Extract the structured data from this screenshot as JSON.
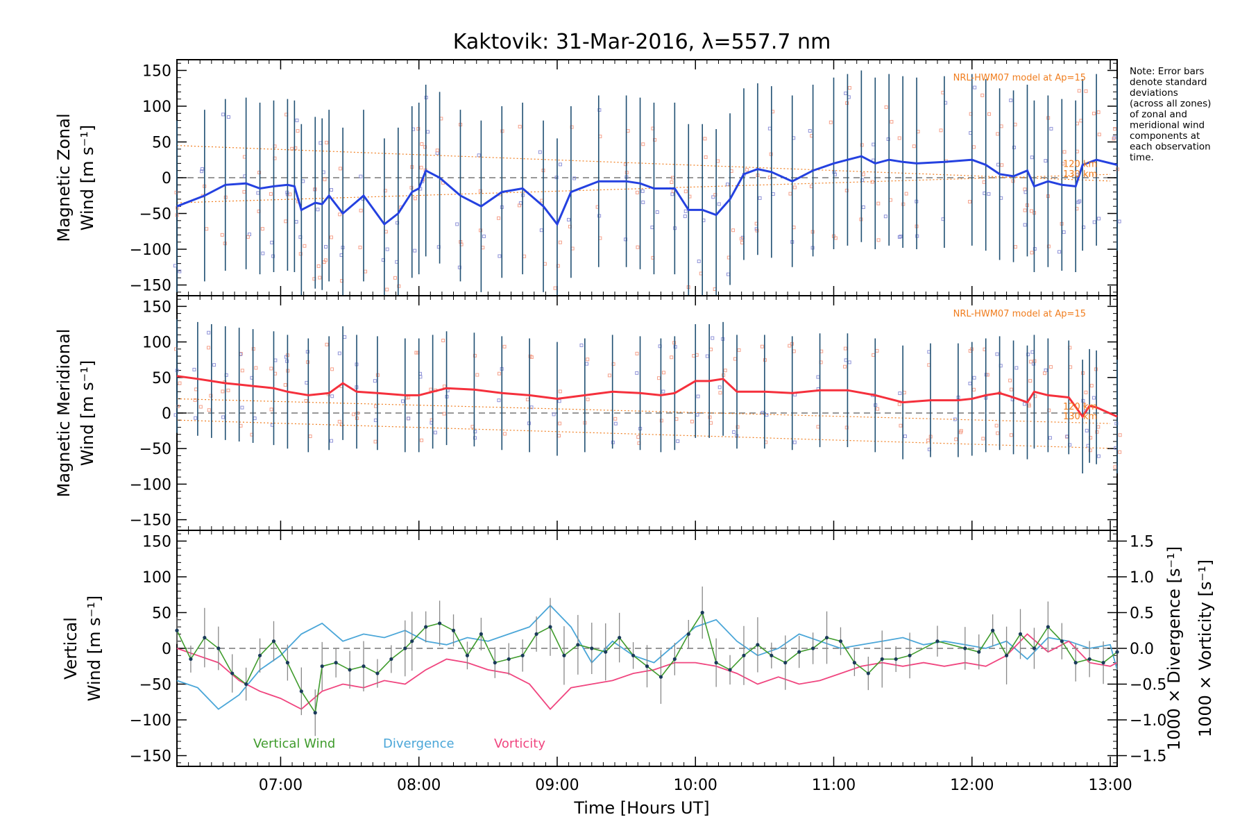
{
  "chart_data": {
    "type": "line",
    "title": "Kaktovik: 31-Mar-2016, λ=557.7 nm",
    "xlabel": "Time [Hours UT]",
    "xlim": [
      6.25,
      13.05
    ],
    "xticks": [
      {
        "v": 7,
        "label": "07:00"
      },
      {
        "v": 8,
        "label": "08:00"
      },
      {
        "v": 9,
        "label": "09:00"
      },
      {
        "v": 10,
        "label": "10:00"
      },
      {
        "v": 11,
        "label": "11:00"
      },
      {
        "v": 12,
        "label": "12:00"
      },
      {
        "v": 13,
        "label": "13:00"
      }
    ],
    "note": [
      "Note: Error bars",
      "denote standard",
      "deviations",
      "(across all zones)",
      "of zonal and",
      "meridional wind",
      "components at",
      "each observation",
      "time."
    ],
    "colors": {
      "zonal": "#2441e0",
      "meridional": "#f5303c",
      "vertical": "#3f9b2c",
      "divergence": "#4aa6d8",
      "vorticity": "#f0457f",
      "model": "#f07d1e",
      "errbar": "#1f4f72",
      "scatter": "#f5a08a",
      "scatter2": "#8e92d8"
    },
    "panels": [
      {
        "id": "zonal",
        "ylabel_lines": [
          "Magnetic Zonal",
          "Wind [m s⁻¹]"
        ],
        "ylim": [
          -165,
          165
        ],
        "yticks": [
          -150,
          -100,
          -50,
          0,
          50,
          100,
          150
        ],
        "model_label": "NRL-HWM07 model at Ap=15",
        "model_alt_labels": [
          "120 km",
          "130 km"
        ],
        "series": {
          "name": "Zonal",
          "x": [
            6.25,
            6.45,
            6.6,
            6.75,
            6.85,
            6.95,
            7.05,
            7.1,
            7.15,
            7.25,
            7.3,
            7.35,
            7.45,
            7.6,
            7.75,
            7.85,
            7.95,
            8.0,
            8.05,
            8.15,
            8.3,
            8.45,
            8.6,
            8.75,
            8.9,
            9.0,
            9.1,
            9.3,
            9.5,
            9.6,
            9.7,
            9.85,
            9.95,
            10.05,
            10.15,
            10.25,
            10.35,
            10.45,
            10.55,
            10.7,
            10.85,
            11.0,
            11.1,
            11.2,
            11.3,
            11.4,
            11.5,
            11.6,
            11.8,
            12.0,
            12.1,
            12.2,
            12.3,
            12.4,
            12.45,
            12.55,
            12.65,
            12.75,
            12.8,
            12.9,
            13.05
          ],
          "y": [
            -40,
            -25,
            -10,
            -8,
            -15,
            -12,
            -10,
            -12,
            -45,
            -35,
            -37,
            -25,
            -50,
            -25,
            -65,
            -50,
            -20,
            -15,
            10,
            0,
            -25,
            -40,
            -20,
            -15,
            -40,
            -65,
            -20,
            -5,
            -5,
            -8,
            -15,
            -15,
            -45,
            -45,
            -52,
            -30,
            5,
            12,
            8,
            -5,
            10,
            20,
            25,
            30,
            20,
            25,
            22,
            20,
            22,
            25,
            18,
            5,
            2,
            10,
            -12,
            -5,
            -10,
            -12,
            18,
            25,
            18
          ]
        },
        "errbar_halfwidth": 120
      },
      {
        "id": "meridional",
        "ylabel_lines": [
          "Magnetic Meridional",
          "Wind [m s⁻¹]"
        ],
        "ylim": [
          -165,
          165
        ],
        "yticks": [
          -150,
          -100,
          -50,
          0,
          50,
          100,
          150
        ],
        "model_label": "NRL-HWM07 model at Ap=15",
        "model_alt_labels": [
          "120 km",
          "130 km"
        ],
        "series": {
          "name": "Meridional",
          "x": [
            6.25,
            6.4,
            6.5,
            6.6,
            6.7,
            6.8,
            6.95,
            7.05,
            7.2,
            7.35,
            7.45,
            7.55,
            7.7,
            7.9,
            8.0,
            8.1,
            8.2,
            8.4,
            8.6,
            8.8,
            9.0,
            9.2,
            9.4,
            9.6,
            9.75,
            9.85,
            10.0,
            10.1,
            10.2,
            10.3,
            10.5,
            10.7,
            10.9,
            11.1,
            11.3,
            11.5,
            11.7,
            11.9,
            12.0,
            12.1,
            12.2,
            12.3,
            12.4,
            12.45,
            12.55,
            12.7,
            12.8,
            12.85,
            12.9,
            13.05
          ],
          "y": [
            52,
            48,
            45,
            42,
            40,
            38,
            35,
            30,
            25,
            28,
            42,
            30,
            28,
            25,
            25,
            30,
            35,
            33,
            28,
            25,
            20,
            25,
            30,
            28,
            25,
            28,
            45,
            45,
            48,
            30,
            30,
            28,
            32,
            32,
            25,
            15,
            18,
            18,
            20,
            25,
            28,
            22,
            15,
            30,
            25,
            22,
            -5,
            10,
            8,
            -5
          ]
        },
        "errbar_halfwidth": 80
      },
      {
        "id": "vertical",
        "ylabel_lines": [
          "Vertical",
          "Wind [m s⁻¹]"
        ],
        "ylim": [
          -165,
          165
        ],
        "yticks": [
          -150,
          -100,
          -50,
          0,
          50,
          100,
          150
        ],
        "right_axis": {
          "ylim": [
            -1.65,
            1.65
          ],
          "yticks": [
            -1.5,
            -1.0,
            -0.5,
            0.0,
            0.5,
            1.0,
            1.5
          ],
          "tick_labels": [
            "−1.5",
            "−1.0",
            "−0.5",
            "0.0",
            "0.5",
            "1.0",
            "1.5"
          ],
          "label_divergence": "1000 × Divergence [s⁻¹]",
          "label_vorticity": "1000 × Vorticity [s⁻¹]"
        },
        "legend": [
          "Vertical Wind",
          "Divergence",
          "Vorticity"
        ],
        "series": [
          {
            "name": "Vertical Wind",
            "x": [
              6.25,
              6.35,
              6.45,
              6.55,
              6.65,
              6.75,
              6.85,
              6.95,
              7.05,
              7.15,
              7.25,
              7.3,
              7.4,
              7.5,
              7.6,
              7.7,
              7.8,
              7.9,
              7.95,
              8.05,
              8.15,
              8.25,
              8.35,
              8.45,
              8.55,
              8.65,
              8.75,
              8.85,
              8.95,
              9.05,
              9.15,
              9.25,
              9.35,
              9.45,
              9.55,
              9.65,
              9.75,
              9.85,
              9.95,
              10.05,
              10.15,
              10.25,
              10.35,
              10.45,
              10.55,
              10.65,
              10.75,
              10.85,
              10.95,
              11.05,
              11.15,
              11.25,
              11.35,
              11.45,
              11.55,
              11.75,
              11.95,
              12.05,
              12.15,
              12.25,
              12.35,
              12.45,
              12.55,
              12.65,
              12.75,
              12.85,
              12.95,
              13.05
            ],
            "y": [
              25,
              -15,
              15,
              0,
              -35,
              -50,
              -10,
              10,
              -20,
              -60,
              -90,
              -25,
              -20,
              -30,
              -25,
              -35,
              -15,
              0,
              10,
              30,
              35,
              25,
              -10,
              20,
              -20,
              -15,
              -10,
              20,
              30,
              -10,
              5,
              0,
              -5,
              15,
              -10,
              -25,
              -40,
              -15,
              20,
              50,
              -20,
              -30,
              -10,
              5,
              -10,
              -20,
              -5,
              0,
              15,
              10,
              -20,
              -35,
              -15,
              -15,
              -10,
              10,
              0,
              -5,
              25,
              -10,
              20,
              0,
              30,
              10,
              -20,
              -15,
              -20,
              -5
            ]
          },
          {
            "name": "Divergence",
            "x": [
              6.25,
              6.4,
              6.55,
              6.7,
              6.85,
              7.0,
              7.15,
              7.3,
              7.45,
              7.6,
              7.75,
              7.9,
              8.05,
              8.2,
              8.35,
              8.5,
              8.65,
              8.8,
              8.95,
              9.1,
              9.25,
              9.4,
              9.55,
              9.7,
              9.85,
              10.0,
              10.15,
              10.3,
              10.45,
              10.6,
              10.75,
              10.9,
              11.05,
              11.2,
              11.35,
              11.5,
              11.65,
              11.8,
              11.95,
              12.1,
              12.25,
              12.4,
              12.55,
              12.7,
              12.85,
              13.0,
              13.05
            ],
            "y": [
              -0.45,
              -0.55,
              -0.85,
              -0.65,
              -0.3,
              -0.1,
              0.2,
              0.35,
              0.1,
              0.2,
              0.15,
              0.25,
              0.1,
              0.05,
              0.15,
              0.1,
              0.2,
              0.3,
              0.6,
              0.3,
              -0.2,
              0.1,
              -0.1,
              -0.2,
              0.05,
              0.3,
              0.4,
              0.1,
              -0.1,
              0.0,
              0.2,
              0.1,
              0.0,
              0.05,
              0.1,
              0.15,
              0.05,
              0.1,
              0.05,
              0.0,
              0.1,
              -0.15,
              0.15,
              0.1,
              0.0,
              0.05,
              -0.3
            ]
          },
          {
            "name": "Vorticity",
            "x": [
              6.25,
              6.4,
              6.55,
              6.7,
              6.85,
              7.0,
              7.15,
              7.3,
              7.45,
              7.6,
              7.75,
              7.9,
              8.05,
              8.2,
              8.35,
              8.5,
              8.65,
              8.8,
              8.95,
              9.1,
              9.25,
              9.4,
              9.55,
              9.7,
              9.85,
              10.0,
              10.15,
              10.3,
              10.45,
              10.6,
              10.75,
              10.9,
              11.05,
              11.2,
              11.35,
              11.5,
              11.65,
              11.8,
              11.95,
              12.1,
              12.25,
              12.4,
              12.55,
              12.7,
              12.85,
              13.0,
              13.05
            ],
            "y": [
              0.0,
              -0.1,
              -0.2,
              -0.45,
              -0.6,
              -0.7,
              -0.85,
              -0.6,
              -0.5,
              -0.55,
              -0.45,
              -0.5,
              -0.3,
              -0.15,
              -0.2,
              -0.3,
              -0.35,
              -0.5,
              -0.85,
              -0.55,
              -0.5,
              -0.45,
              -0.35,
              -0.3,
              -0.2,
              -0.2,
              -0.25,
              -0.35,
              -0.5,
              -0.4,
              -0.5,
              -0.45,
              -0.35,
              -0.25,
              -0.2,
              -0.25,
              -0.2,
              -0.25,
              -0.2,
              -0.25,
              -0.1,
              0.2,
              -0.05,
              0.1,
              -0.2,
              -0.25,
              -0.2
            ]
          }
        ],
        "errbar_halfwidth": 30
      }
    ]
  }
}
